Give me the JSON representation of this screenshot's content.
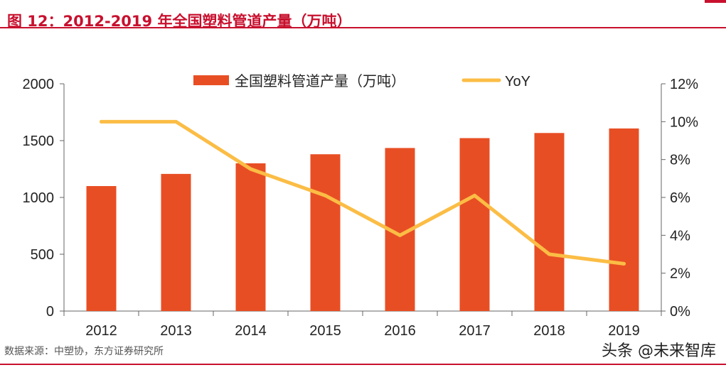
{
  "header": {
    "title": "图 12：2012-2019 年全国塑料管道产量（万吨）"
  },
  "footer": {
    "source": "数据来源：中塑协，东方证券研究所",
    "watermark": "头条 @未来智库"
  },
  "colors": {
    "bar": "#e84e24",
    "line": "#fbbd45",
    "title": "#c8102e",
    "axis": "#666666",
    "text": "#222222"
  },
  "chart_data": {
    "type": "bar",
    "categories": [
      "2012",
      "2013",
      "2014",
      "2015",
      "2016",
      "2017",
      "2018",
      "2019"
    ],
    "series": [
      {
        "name": "全国塑料管道产量（万吨）",
        "type": "bar",
        "axis": "left",
        "values": [
          1100,
          1207,
          1300,
          1380,
          1435,
          1522,
          1567,
          1607
        ]
      },
      {
        "name": "YoY",
        "type": "line",
        "axis": "right",
        "values": [
          10.0,
          10.0,
          7.5,
          6.1,
          4.0,
          6.1,
          3.0,
          2.5
        ]
      }
    ],
    "y_left": {
      "min": 0,
      "max": 2000,
      "ticks": [
        0,
        500,
        1000,
        1500,
        2000
      ]
    },
    "y_right": {
      "min": 0,
      "max": 12,
      "ticks": [
        "0%",
        "2%",
        "4%",
        "6%",
        "8%",
        "10%",
        "12%"
      ]
    },
    "legend": "top-center",
    "grid": false
  }
}
